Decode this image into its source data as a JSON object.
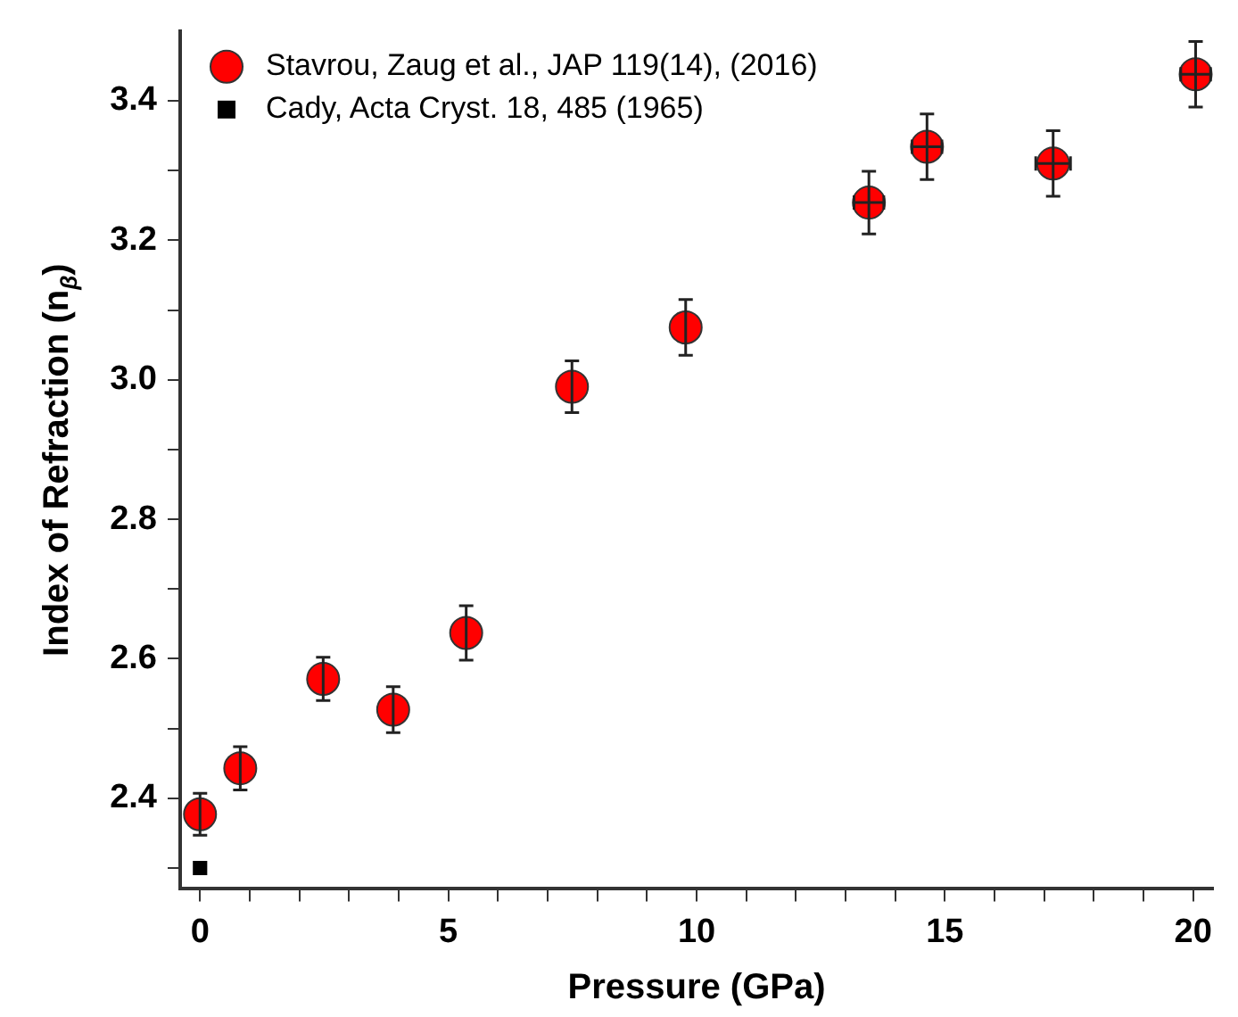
{
  "chart_data": {
    "type": "scatter",
    "xlabel": "Pressure (GPa)",
    "ylabel": "Index of Refraction (n$_{β}$)",
    "xlim": [
      -0.4,
      20.4
    ],
    "ylim": [
      2.27,
      3.5
    ],
    "xticks": [
      0,
      {
        "value": 1,
        "label": null
      },
      {
        "value": 2,
        "label": null
      },
      {
        "value": 3,
        "label": null
      },
      {
        "value": 4,
        "label": null
      },
      5,
      {
        "value": 6,
        "label": null
      },
      {
        "value": 7,
        "label": null
      },
      {
        "value": 8,
        "label": null
      },
      {
        "value": 9,
        "label": null
      },
      10,
      {
        "value": 11,
        "label": null
      },
      {
        "value": 12,
        "label": null
      },
      {
        "value": 13,
        "label": null
      },
      {
        "value": 14,
        "label": null
      },
      15,
      {
        "value": 16,
        "label": null
      },
      {
        "value": 17,
        "label": null
      },
      {
        "value": 18,
        "label": null
      },
      {
        "value": 19,
        "label": null
      },
      20
    ],
    "yticks": [
      {
        "value": 2.3,
        "label": null
      },
      2.4,
      {
        "value": 2.5,
        "label": null
      },
      2.6,
      {
        "value": 2.7,
        "label": null
      },
      2.8,
      {
        "value": 2.9,
        "label": null
      },
      {
        "value": 3,
        "label": "3.0"
      },
      {
        "value": 3.1,
        "label": null
      },
      3.2,
      {
        "value": 3.3,
        "label": null
      },
      3.4
    ],
    "legend": "top left",
    "grid": false,
    "series": [
      {
        "name": "Stavrou, Zaug et al., JAP 119(14), (2016)",
        "color": "#ff0000",
        "marker": "circle",
        "x": [
          0,
          0.81,
          2.48,
          3.89,
          5.36,
          7.49,
          9.78,
          13.47,
          14.64,
          17.18,
          20.05
        ],
        "values": [
          2.377,
          2.443,
          2.571,
          2.527,
          2.637,
          2.99,
          3.075,
          3.254,
          3.334,
          3.31,
          3.438
        ],
        "errors": [
          0.03,
          0.031,
          0.031,
          0.033,
          0.039,
          0.037,
          0.04,
          0.045,
          0.047,
          0.047,
          0.047
        ],
        "xerrors": [
          null,
          null,
          null,
          null,
          null,
          null,
          null,
          0.3,
          0.3,
          0.35,
          0.3
        ]
      },
      {
        "name": "Cady, Acta Cryst. 18, 485 (1965)",
        "color": "#000000",
        "marker": "square",
        "x": [
          0
        ],
        "values": [
          2.3
        ]
      }
    ]
  }
}
